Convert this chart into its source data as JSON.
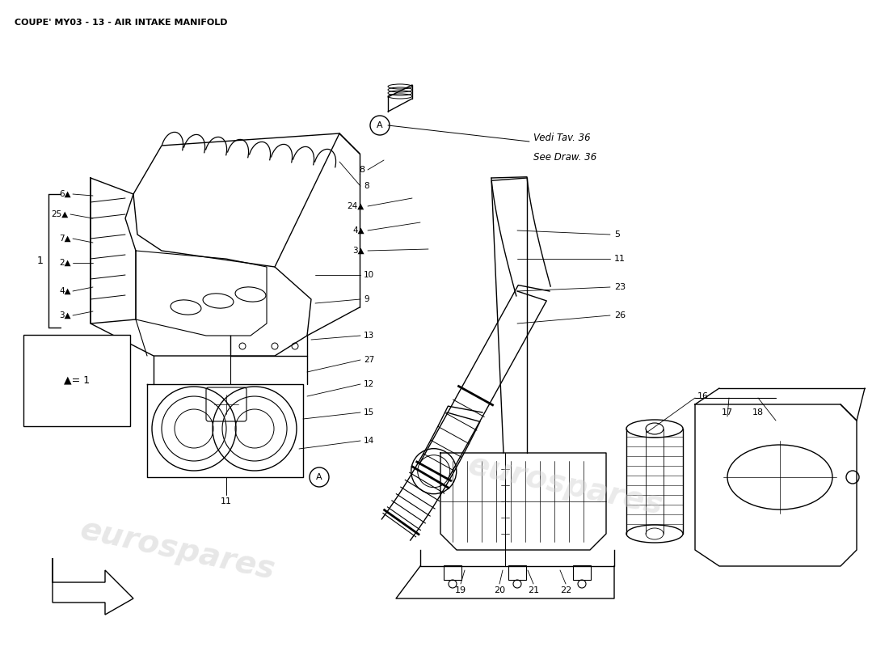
{
  "title": "COUPE' MY03 - 13 - AIR INTAKE MANIFOLD",
  "bg_color": "#ffffff",
  "line_color": "#000000",
  "watermark_text": "eurospares",
  "watermark_color": "#d0d0d0",
  "ref_line1": "Vedi Tav. 36",
  "ref_line2": "See Draw. 36",
  "fig_width": 11.0,
  "fig_height": 8.0,
  "dpi": 100
}
